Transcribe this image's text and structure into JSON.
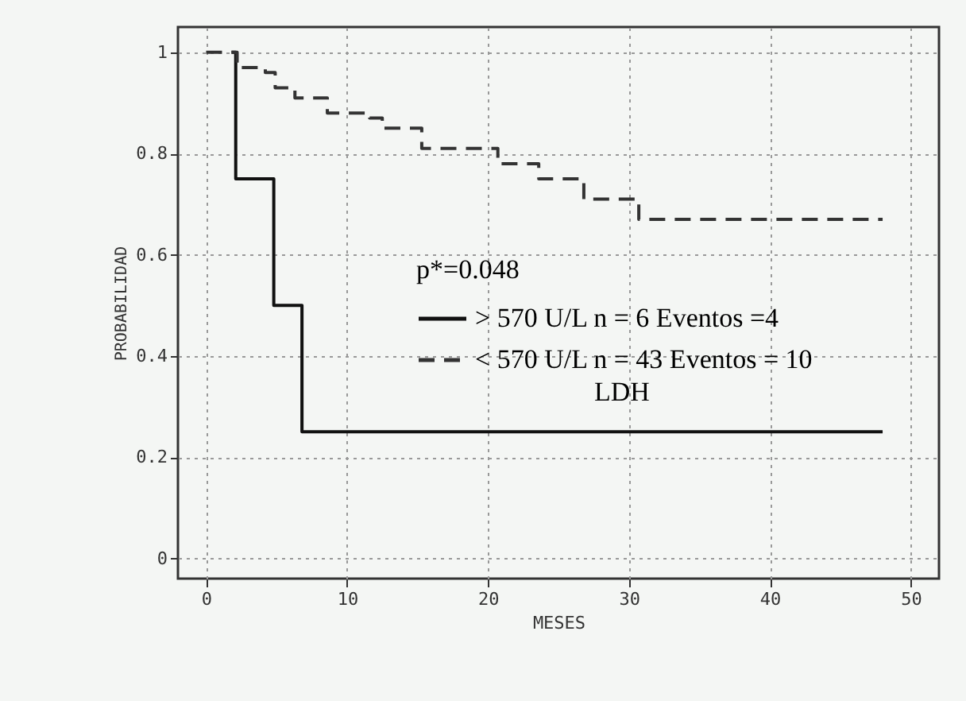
{
  "chart_data": {
    "type": "step",
    "xlabel": "MESES",
    "ylabel": "PROBABILIDAD",
    "legend_title": "p*=0.048",
    "annotations": [
      "LDH"
    ],
    "xlim": [
      -2,
      52
    ],
    "ylim": [
      -0.04,
      1.05
    ],
    "xticks": [
      0,
      10,
      20,
      30,
      40,
      50
    ],
    "yticks": [
      0,
      0.2,
      0.4,
      0.6,
      0.8,
      1
    ],
    "grid": true,
    "legend": "right",
    "series": [
      {
        "name": ">  570 U/L    n = 6     Eventos =4",
        "color": "#111111",
        "line_style": "solid",
        "x": [
          1.8,
          2.1,
          4.8,
          6.8,
          48
        ],
        "values": [
          1,
          0.75,
          0.5,
          0.25,
          0.25
        ]
      },
      {
        "name": "<  570 U/L    n = 43   Eventos = 10",
        "color": "#333333",
        "line_style": "dashed",
        "x": [
          0,
          2.2,
          4.2,
          4.9,
          6.3,
          8.6,
          11.6,
          12.5,
          15.3,
          20.7,
          23.6,
          26.8,
          30.7,
          48
        ],
        "values": [
          1,
          0.97,
          0.96,
          0.93,
          0.91,
          0.88,
          0.87,
          0.85,
          0.81,
          0.78,
          0.75,
          0.71,
          0.67,
          0.67
        ]
      }
    ]
  }
}
